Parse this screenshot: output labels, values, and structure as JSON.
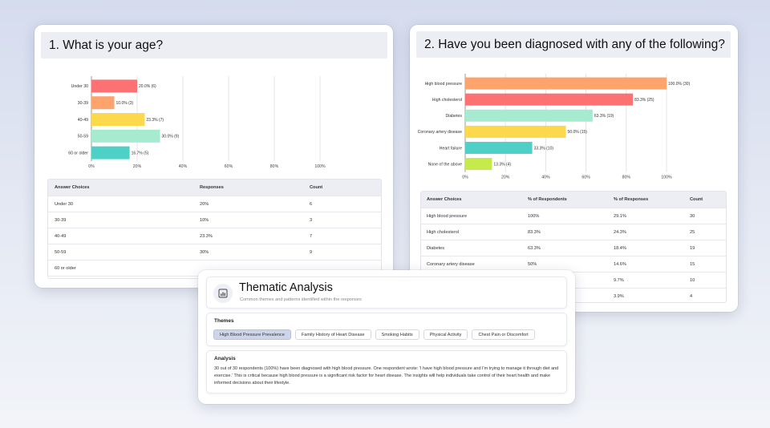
{
  "age_card": {
    "title": "1. What is your age?",
    "table": {
      "headers": [
        "Answer Choices",
        "Responses",
        "Count"
      ],
      "rows": [
        [
          "Under 30",
          "20%",
          "6"
        ],
        [
          "30-39",
          "10%",
          "3"
        ],
        [
          "40-49",
          "23.3%",
          "7"
        ],
        [
          "50-59",
          "30%",
          "9"
        ],
        [
          "60 or older",
          "",
          ""
        ]
      ]
    }
  },
  "diag_card": {
    "title": "2. Have you been diagnosed with any of the following?",
    "table": {
      "headers": [
        "Answer Choices",
        "% of Respondents",
        "% of Responses",
        "Count"
      ],
      "rows": [
        [
          "High blood pressure",
          "100%",
          "29.1%",
          "30"
        ],
        [
          "High cholesterol",
          "83.3%",
          "24.3%",
          "25"
        ],
        [
          "Diabetes",
          "63.3%",
          "18.4%",
          "19"
        ],
        [
          "Coronary artery disease",
          "50%",
          "14.6%",
          "15"
        ],
        [
          "",
          "",
          "9.7%",
          "10"
        ],
        [
          "",
          "",
          "3.9%",
          "4"
        ]
      ]
    }
  },
  "thematic": {
    "title": "Thematic Analysis",
    "subtitle": "Common themes and patterns identified within the responses",
    "themes_label": "Themes",
    "themes": [
      "High Blood Pressure Prevalence",
      "Family History of Heart Disease",
      "Smoking Habits",
      "Physical Activity",
      "Chest Pain or Discomfort"
    ],
    "active_theme": 0,
    "analysis_label": "Analysis",
    "analysis_text": "30 out of 30 respondents (100%) have been diagnosed with high blood pressure. One respondent wrote: 'I have high blood pressure and I'm trying to manage it through diet and exercise.' This is critical because high blood pressure is a significant risk factor for heart disease. The insights will help individuals take control of their heart health and make informed decisions about their lifestyle.",
    "icon": "chart-icon"
  },
  "chart_data": [
    {
      "type": "bar",
      "orientation": "horizontal",
      "categories": [
        "Under 30",
        "30-39",
        "40-49",
        "50-59",
        "60 or older"
      ],
      "values": [
        20.0,
        10.0,
        23.3,
        30.0,
        16.7
      ],
      "data_labels": [
        "20.0% (6)",
        "10.0% (3)",
        "23.3% (7)",
        "30.0% (9)",
        "16.7% (5)"
      ],
      "colors": [
        "#fc7171",
        "#fca46c",
        "#fcd84c",
        "#a6ead0",
        "#4fd0c6"
      ],
      "xlim": [
        0,
        100
      ],
      "xticks": [
        "0%",
        "20%",
        "40%",
        "60%",
        "80%",
        "100%"
      ],
      "grid": true
    },
    {
      "type": "bar",
      "orientation": "horizontal",
      "categories": [
        "High blood pressure",
        "High cholesterol",
        "Diabetes",
        "Coronary artery disease",
        "Heart failure",
        "None of the above"
      ],
      "values": [
        100.0,
        83.3,
        63.3,
        50.0,
        33.3,
        13.3
      ],
      "data_labels": [
        "100.0% (30)",
        "83.3% (25)",
        "63.3% (19)",
        "50.0% (15)",
        "33.3% (10)",
        "13.3% (4)"
      ],
      "colors": [
        "#fca46c",
        "#fc7171",
        "#a6ead0",
        "#fcd84c",
        "#4fd0c6",
        "#c6ea4c"
      ],
      "xlim": [
        0,
        100
      ],
      "xticks": [
        "0%",
        "20%",
        "40%",
        "60%",
        "80%",
        "100%"
      ],
      "grid": true
    }
  ]
}
